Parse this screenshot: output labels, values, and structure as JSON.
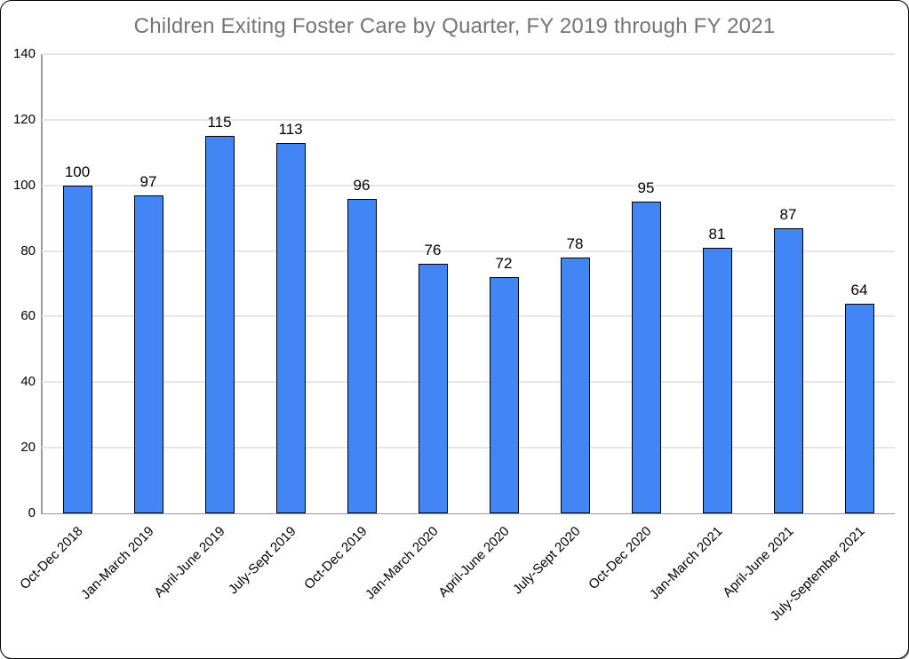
{
  "chart_data": {
    "type": "bar",
    "title": "Children Exiting Foster Care by Quarter, FY 2019 through FY 2021",
    "categories": [
      "Oct-Dec 2018",
      "Jan-March 2019",
      "April-June 2019",
      "July-Sept 2019",
      "Oct-Dec 2019",
      "Jan-March 2020",
      "April-June 2020",
      "July-Sept 2020",
      "Oct-Dec 2020",
      "Jan-March 2021",
      "April-June 2021",
      "July-September 2021"
    ],
    "values": [
      100,
      97,
      115,
      113,
      96,
      76,
      72,
      78,
      95,
      81,
      87,
      64
    ],
    "value_labels": [
      "100",
      "97",
      "115",
      "113",
      "96",
      "76",
      "72",
      "78",
      "95",
      "81",
      "87",
      "64"
    ],
    "xlabel": "",
    "ylabel": "",
    "ylim": [
      0,
      140
    ],
    "ytick_step": 20,
    "ytick_labels": [
      "0",
      "20",
      "40",
      "60",
      "80",
      "100",
      "120",
      "140"
    ],
    "grid": "horizontal",
    "legend_position": "none",
    "colors": {
      "bar_fill": "#4285f4",
      "bar_border": "#000000",
      "gridline": "#e6e6e6",
      "axis_line": "#9a9a9a",
      "title_text": "#757575",
      "label_text": "#000000"
    }
  }
}
